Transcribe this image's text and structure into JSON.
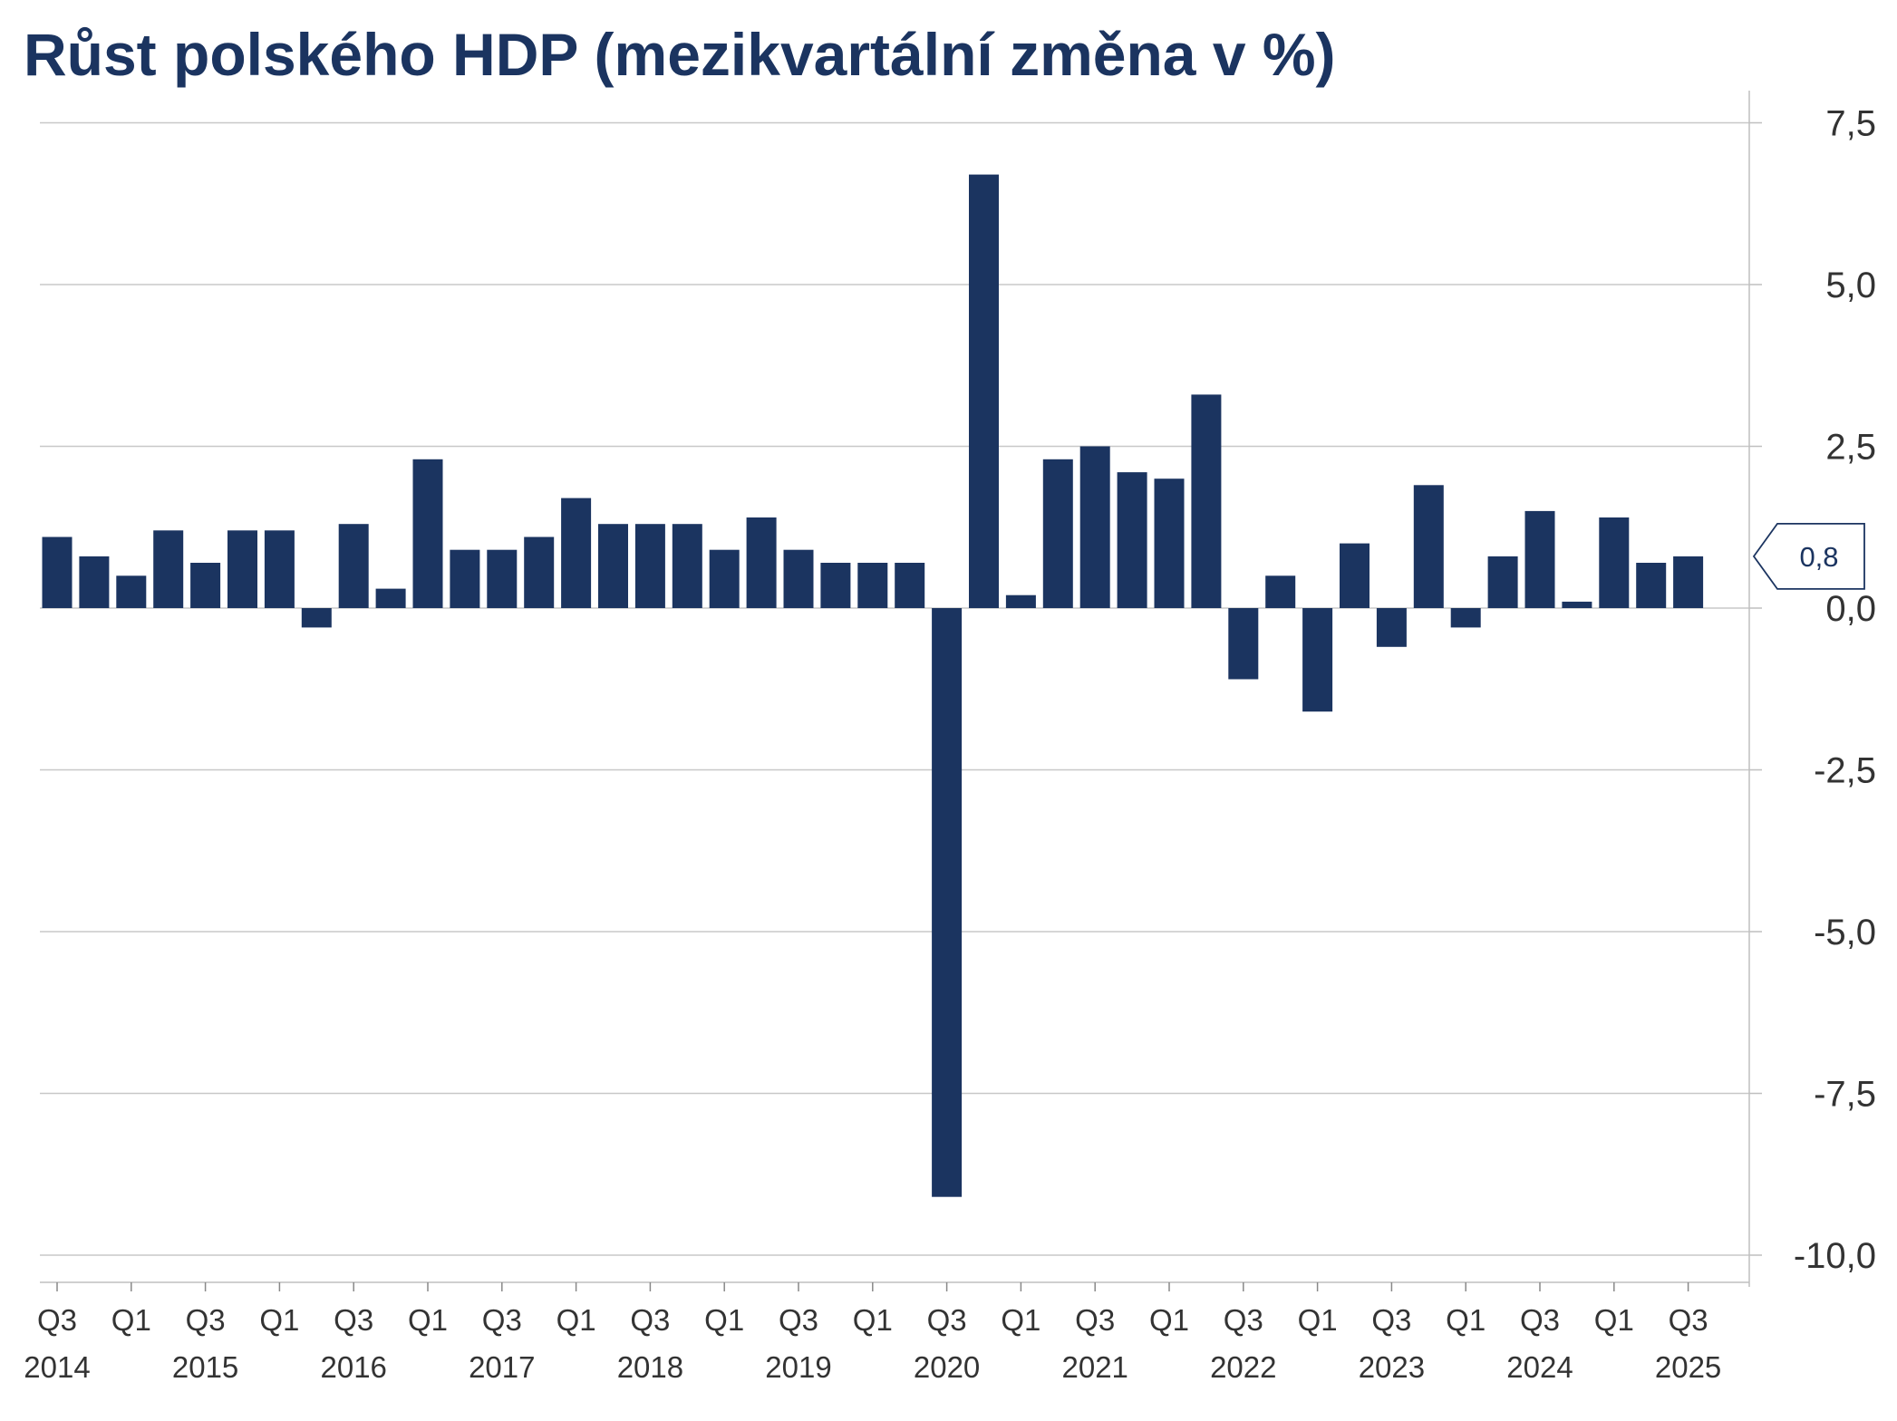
{
  "chart_data": {
    "type": "bar",
    "title": "Růst polského HDP (mezikvartální změna v %)",
    "xlabel": "",
    "ylabel": "",
    "ylim": [
      -10.4,
      7.85
    ],
    "y_ticks": [
      "7,5",
      "5,0",
      "2,5",
      "0,0",
      "-2,5",
      "-5,0",
      "-7,5",
      "-10,0"
    ],
    "y_tick_values": [
      7.5,
      5.0,
      2.5,
      0.0,
      -2.5,
      -5.0,
      -7.5,
      -10.0
    ],
    "y_axis_side": "right",
    "grid": true,
    "categories": [
      "Q3 2014",
      "Q4 2014",
      "Q1 2015",
      "Q2 2015",
      "Q3 2015",
      "Q4 2015",
      "Q1 2016",
      "Q2 2016",
      "Q3 2016",
      "Q4 2016",
      "Q1 2017",
      "Q2 2017",
      "Q3 2017",
      "Q4 2017",
      "Q1 2018",
      "Q2 2018",
      "Q3 2018",
      "Q4 2018",
      "Q1 2019",
      "Q2 2019",
      "Q3 2019",
      "Q4 2019",
      "Q1 2020",
      "Q2 2020",
      "Q3 2020",
      "Q4 2020",
      "Q1 2021",
      "Q2 2021",
      "Q3 2021",
      "Q4 2021",
      "Q1 2022",
      "Q2 2022",
      "Q3 2022",
      "Q4 2022",
      "Q1 2023",
      "Q2 2023",
      "Q3 2023",
      "Q4 2023",
      "Q1 2024",
      "Q2 2024",
      "Q3 2024",
      "Q4 2024",
      "Q1 2025",
      "Q2 2025",
      "Q3 2025"
    ],
    "values": [
      1.1,
      0.8,
      0.5,
      1.2,
      0.7,
      1.2,
      1.2,
      -0.3,
      1.3,
      0.3,
      2.3,
      0.9,
      0.9,
      1.1,
      1.7,
      1.3,
      1.3,
      1.3,
      0.9,
      1.4,
      0.9,
      0.7,
      0.7,
      0.7,
      -9.1,
      6.7,
      0.2,
      2.3,
      2.5,
      2.1,
      2.0,
      3.3,
      -1.1,
      0.5,
      -1.6,
      1.0,
      -0.6,
      1.9,
      -0.3,
      0.8,
      1.5,
      0.1,
      1.4,
      0.7,
      0.8
    ],
    "x_tick_labels": [
      {
        "quarter": "Q3",
        "year": "2014",
        "index": 0
      },
      {
        "quarter": "Q1",
        "year": "",
        "index": 2
      },
      {
        "quarter": "Q3",
        "year": "2015",
        "index": 4
      },
      {
        "quarter": "Q1",
        "year": "",
        "index": 6
      },
      {
        "quarter": "Q3",
        "year": "2016",
        "index": 8
      },
      {
        "quarter": "Q1",
        "year": "",
        "index": 10
      },
      {
        "quarter": "Q3",
        "year": "2017",
        "index": 12
      },
      {
        "quarter": "Q1",
        "year": "",
        "index": 14
      },
      {
        "quarter": "Q3",
        "year": "2018",
        "index": 16
      },
      {
        "quarter": "Q1",
        "year": "",
        "index": 18
      },
      {
        "quarter": "Q3",
        "year": "2019",
        "index": 20
      },
      {
        "quarter": "Q1",
        "year": "",
        "index": 22
      },
      {
        "quarter": "Q3",
        "year": "2020",
        "index": 24
      },
      {
        "quarter": "Q1",
        "year": "",
        "index": 26
      },
      {
        "quarter": "Q3",
        "year": "2021",
        "index": 28
      },
      {
        "quarter": "Q1",
        "year": "",
        "index": 30
      },
      {
        "quarter": "Q3",
        "year": "2022",
        "index": 32
      },
      {
        "quarter": "Q1",
        "year": "",
        "index": 34
      },
      {
        "quarter": "Q3",
        "year": "2023",
        "index": 36
      },
      {
        "quarter": "Q1",
        "year": "",
        "index": 38
      },
      {
        "quarter": "Q3",
        "year": "2024",
        "index": 40
      },
      {
        "quarter": "Q1",
        "year": "",
        "index": 42
      },
      {
        "quarter": "Q3",
        "year": "2025",
        "index": 44
      }
    ],
    "last_value_label": "0,8",
    "colors": {
      "bar": "#1b3460",
      "title": "#1b3460",
      "grid": "#c8c8c8",
      "axis": "#bfbfbf",
      "text": "#333333"
    }
  }
}
